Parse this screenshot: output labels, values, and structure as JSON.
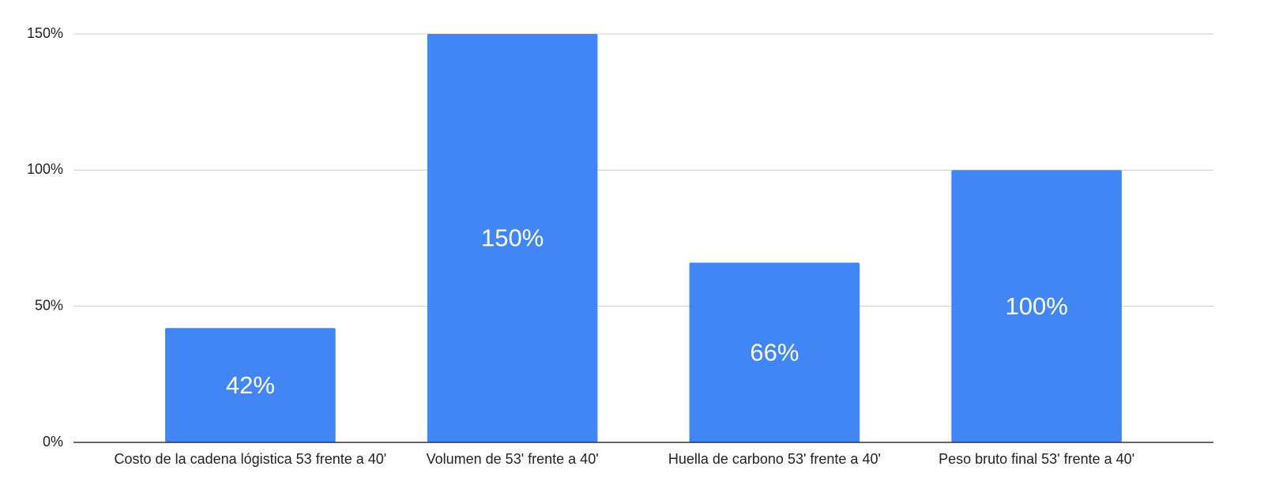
{
  "chart_data": {
    "type": "bar",
    "categories": [
      "Costo de la cadena lógistica 53 frente a 40'",
      "Volumen de 53' frente a 40'",
      "Huella de carbono 53' frente a 40'",
      "Peso bruto final 53' frente a 40'"
    ],
    "values": [
      42,
      150,
      66,
      100
    ],
    "value_labels": [
      "42%",
      "150%",
      "66%",
      "100%"
    ],
    "color": "#4285f4",
    "ylim": [
      0,
      150
    ],
    "yticks": [
      {
        "value": 0,
        "label": "0%"
      },
      {
        "value": 50,
        "label": "50%"
      },
      {
        "value": 100,
        "label": "100%"
      },
      {
        "value": 150,
        "label": "150%"
      }
    ],
    "grid": true
  }
}
